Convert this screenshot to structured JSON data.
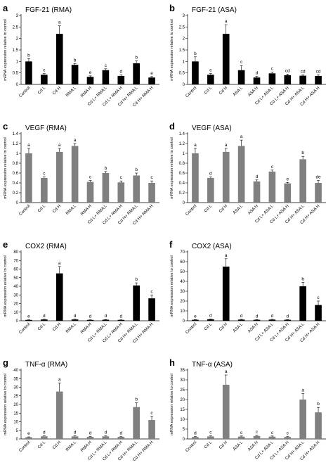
{
  "chart_data": [
    {
      "panel": "a",
      "title": "FGF-21 (RMA)",
      "type": "bar",
      "ylabel": "mRNA expression relative to control",
      "ylim": [
        0,
        3
      ],
      "yticks": [
        0,
        0.5,
        1,
        1.5,
        2,
        2.5,
        3
      ],
      "grid": false,
      "bar_color": "#000000",
      "categories": [
        "Control",
        "Cd L",
        "Cd H",
        "RMA L",
        "RMA H",
        "Cd L+ RMA L",
        "Cd L+ RMA H",
        "Cd H+ RMA L",
        "Cd H+ RMA H"
      ],
      "values": [
        1.0,
        0.42,
        2.2,
        0.85,
        0.33,
        0.62,
        0.37,
        0.92,
        0.3
      ],
      "errors": [
        0.12,
        0.05,
        0.35,
        0.06,
        0.04,
        0.06,
        0.05,
        0.1,
        0.04
      ],
      "labels": [
        "b",
        "c",
        "a",
        "b",
        "e",
        "c",
        "d",
        "b",
        "e"
      ]
    },
    {
      "panel": "b",
      "title": "FGF-21 (ASA)",
      "type": "bar",
      "ylabel": "mRNA expression relative to control",
      "ylim": [
        0,
        3
      ],
      "yticks": [
        0,
        0.5,
        1,
        1.5,
        2,
        2.5,
        3
      ],
      "grid": false,
      "bar_color": "#000000",
      "categories": [
        "Control",
        "Cd L",
        "Cd H",
        "ASA L",
        "ASA H",
        "Cd L+ ASA L",
        "Cd L+ ASA H",
        "Cd H+ ASA L",
        "Cd H+ ASA H"
      ],
      "values": [
        1.0,
        0.42,
        2.2,
        0.62,
        0.3,
        0.48,
        0.4,
        0.38,
        0.37
      ],
      "errors": [
        0.2,
        0.05,
        0.4,
        0.2,
        0.05,
        0.05,
        0.05,
        0.04,
        0.05
      ],
      "labels": [
        "b",
        "c",
        "a",
        "c",
        "d",
        "c",
        "cd",
        "cd",
        "cd"
      ]
    },
    {
      "panel": "c",
      "title": "VEGF (RMA)",
      "type": "bar",
      "ylabel": "mRNA expression relative to control",
      "ylim": [
        0,
        1.4
      ],
      "yticks": [
        0,
        0.2,
        0.4,
        0.6,
        0.8,
        1,
        1.2,
        1.4
      ],
      "grid": false,
      "bar_color": "#808080",
      "categories": [
        "Control",
        "Cd L",
        "Cd H",
        "RMA L",
        "RMA H",
        "Cd L+ RMA L",
        "Cd L+ RMA H",
        "Cd H+ RMA L",
        "Cd H+ RMA H"
      ],
      "values": [
        1.0,
        0.5,
        1.03,
        1.15,
        0.42,
        0.6,
        0.41,
        0.55,
        0.4
      ],
      "errors": [
        0.1,
        0.02,
        0.07,
        0.05,
        0.03,
        0.03,
        0.03,
        0.05,
        0.04
      ],
      "labels": [
        "a",
        "c",
        "a",
        "a",
        "c",
        "b",
        "c",
        "b",
        "c"
      ]
    },
    {
      "panel": "d",
      "title": "VEGF (ASA)",
      "type": "bar",
      "ylabel": "mRNA expression relative to control",
      "ylim": [
        0,
        1.4
      ],
      "yticks": [
        0,
        0.2,
        0.4,
        0.6,
        0.8,
        1,
        1.2,
        1.4
      ],
      "grid": false,
      "bar_color": "#808080",
      "categories": [
        "Control",
        "Cd L",
        "Cd H",
        "ASA L",
        "ASA H",
        "Cd L+ ASA L",
        "Cd L+ ASA H",
        "Cd H+ ASA L",
        "Cd H+ ASA H"
      ],
      "values": [
        1.0,
        0.5,
        1.03,
        1.15,
        0.43,
        0.63,
        0.39,
        0.88,
        0.4
      ],
      "errors": [
        0.1,
        0.02,
        0.07,
        0.12,
        0.03,
        0.03,
        0.02,
        0.06,
        0.05
      ],
      "labels": [
        "a",
        "d",
        "a",
        "a",
        "d",
        "c",
        "e",
        "b",
        "de"
      ]
    },
    {
      "panel": "e",
      "title": "COX2 (RMA)",
      "type": "bar",
      "ylabel": "mRNA expression relative to control",
      "ylim": [
        0,
        80
      ],
      "yticks": [
        0,
        10,
        20,
        30,
        40,
        50,
        60,
        70,
        80
      ],
      "grid": false,
      "bar_color": "#000000",
      "categories": [
        "Control",
        "Cd L",
        "Cd H",
        "RMA L",
        "RMA H",
        "Cd L+ RMA L",
        "Cd L+ RMA H",
        "Cd H+ RMA L",
        "Cd H+ RMA H"
      ],
      "values": [
        1.0,
        1.5,
        55,
        1.5,
        1.0,
        1.2,
        1.0,
        41,
        26
      ],
      "errors": [
        0.2,
        0.3,
        8,
        0.3,
        0.2,
        0.3,
        0.2,
        3,
        4
      ],
      "labels": [
        "e",
        "d",
        "a",
        "d",
        "d",
        "d",
        "d",
        "b",
        "c"
      ]
    },
    {
      "panel": "f",
      "title": "COX2 (ASA)",
      "type": "bar",
      "ylabel": "mRNA expression relative to control",
      "ylim": [
        0,
        70
      ],
      "yticks": [
        0,
        10,
        20,
        30,
        40,
        50,
        60,
        70
      ],
      "grid": false,
      "bar_color": "#000000",
      "categories": [
        "Control",
        "Cd L",
        "Cd H",
        "ASA L",
        "ASA H",
        "Cd L+ ASA L",
        "Cd L+ ASA H",
        "Cd H+ ASA L",
        "Cd H+ ASA H"
      ],
      "values": [
        1.0,
        1.5,
        55,
        1.2,
        1.0,
        1.2,
        1.0,
        35,
        16
      ],
      "errors": [
        0.2,
        0.3,
        8,
        0.3,
        0.2,
        0.3,
        0.2,
        4,
        4
      ],
      "labels": [
        "e",
        "d",
        "a",
        "d",
        "d",
        "d",
        "d",
        "b",
        "c"
      ]
    },
    {
      "panel": "g",
      "title": "TNF-α (RMA)",
      "type": "bar",
      "ylabel": "mRNA expression relative to control",
      "ylim": [
        0,
        40
      ],
      "yticks": [
        0,
        5,
        10,
        15,
        20,
        25,
        30,
        35,
        40
      ],
      "grid": false,
      "bar_color": "#808080",
      "categories": [
        "Control",
        "Cd L",
        "Cd H",
        "RMA L",
        "RMA H",
        "Cd L+ RMA L",
        "Cd L+ RMA H",
        "Cd H+ RMA L",
        "Cd H+ RMA H"
      ],
      "values": [
        1.0,
        1.5,
        27.5,
        1.5,
        1.2,
        1.5,
        1.2,
        18.5,
        11
      ],
      "errors": [
        0.2,
        0.3,
        5,
        0.3,
        0.2,
        0.3,
        0.2,
        2.5,
        2
      ],
      "labels": [
        "e",
        "d",
        "a",
        "d",
        "d",
        "d",
        "d",
        "b",
        "c"
      ]
    },
    {
      "panel": "h",
      "title": "TNF-α (ASA)",
      "type": "bar",
      "ylabel": "mRNA expression relative to control",
      "ylim": [
        0,
        35
      ],
      "yticks": [
        0,
        5,
        10,
        15,
        20,
        25,
        30,
        35
      ],
      "grid": false,
      "bar_color": "#808080",
      "categories": [
        "Control",
        "Cd L",
        "Cd H",
        "ASA L",
        "ASA H",
        "Cd L+ ASA L",
        "Cd L+ ASA H",
        "Cd H+ ASA L",
        "Cd H+ ASA H"
      ],
      "values": [
        1.0,
        1.3,
        27.5,
        1.2,
        1.5,
        1.2,
        1.0,
        20,
        13.5
      ],
      "errors": [
        0.2,
        0.3,
        5,
        0.3,
        0.3,
        0.3,
        0.2,
        3,
        2.5
      ],
      "labels": [
        "d",
        "c",
        "a",
        "c",
        "c",
        "c",
        "c",
        "a",
        "b"
      ]
    }
  ]
}
